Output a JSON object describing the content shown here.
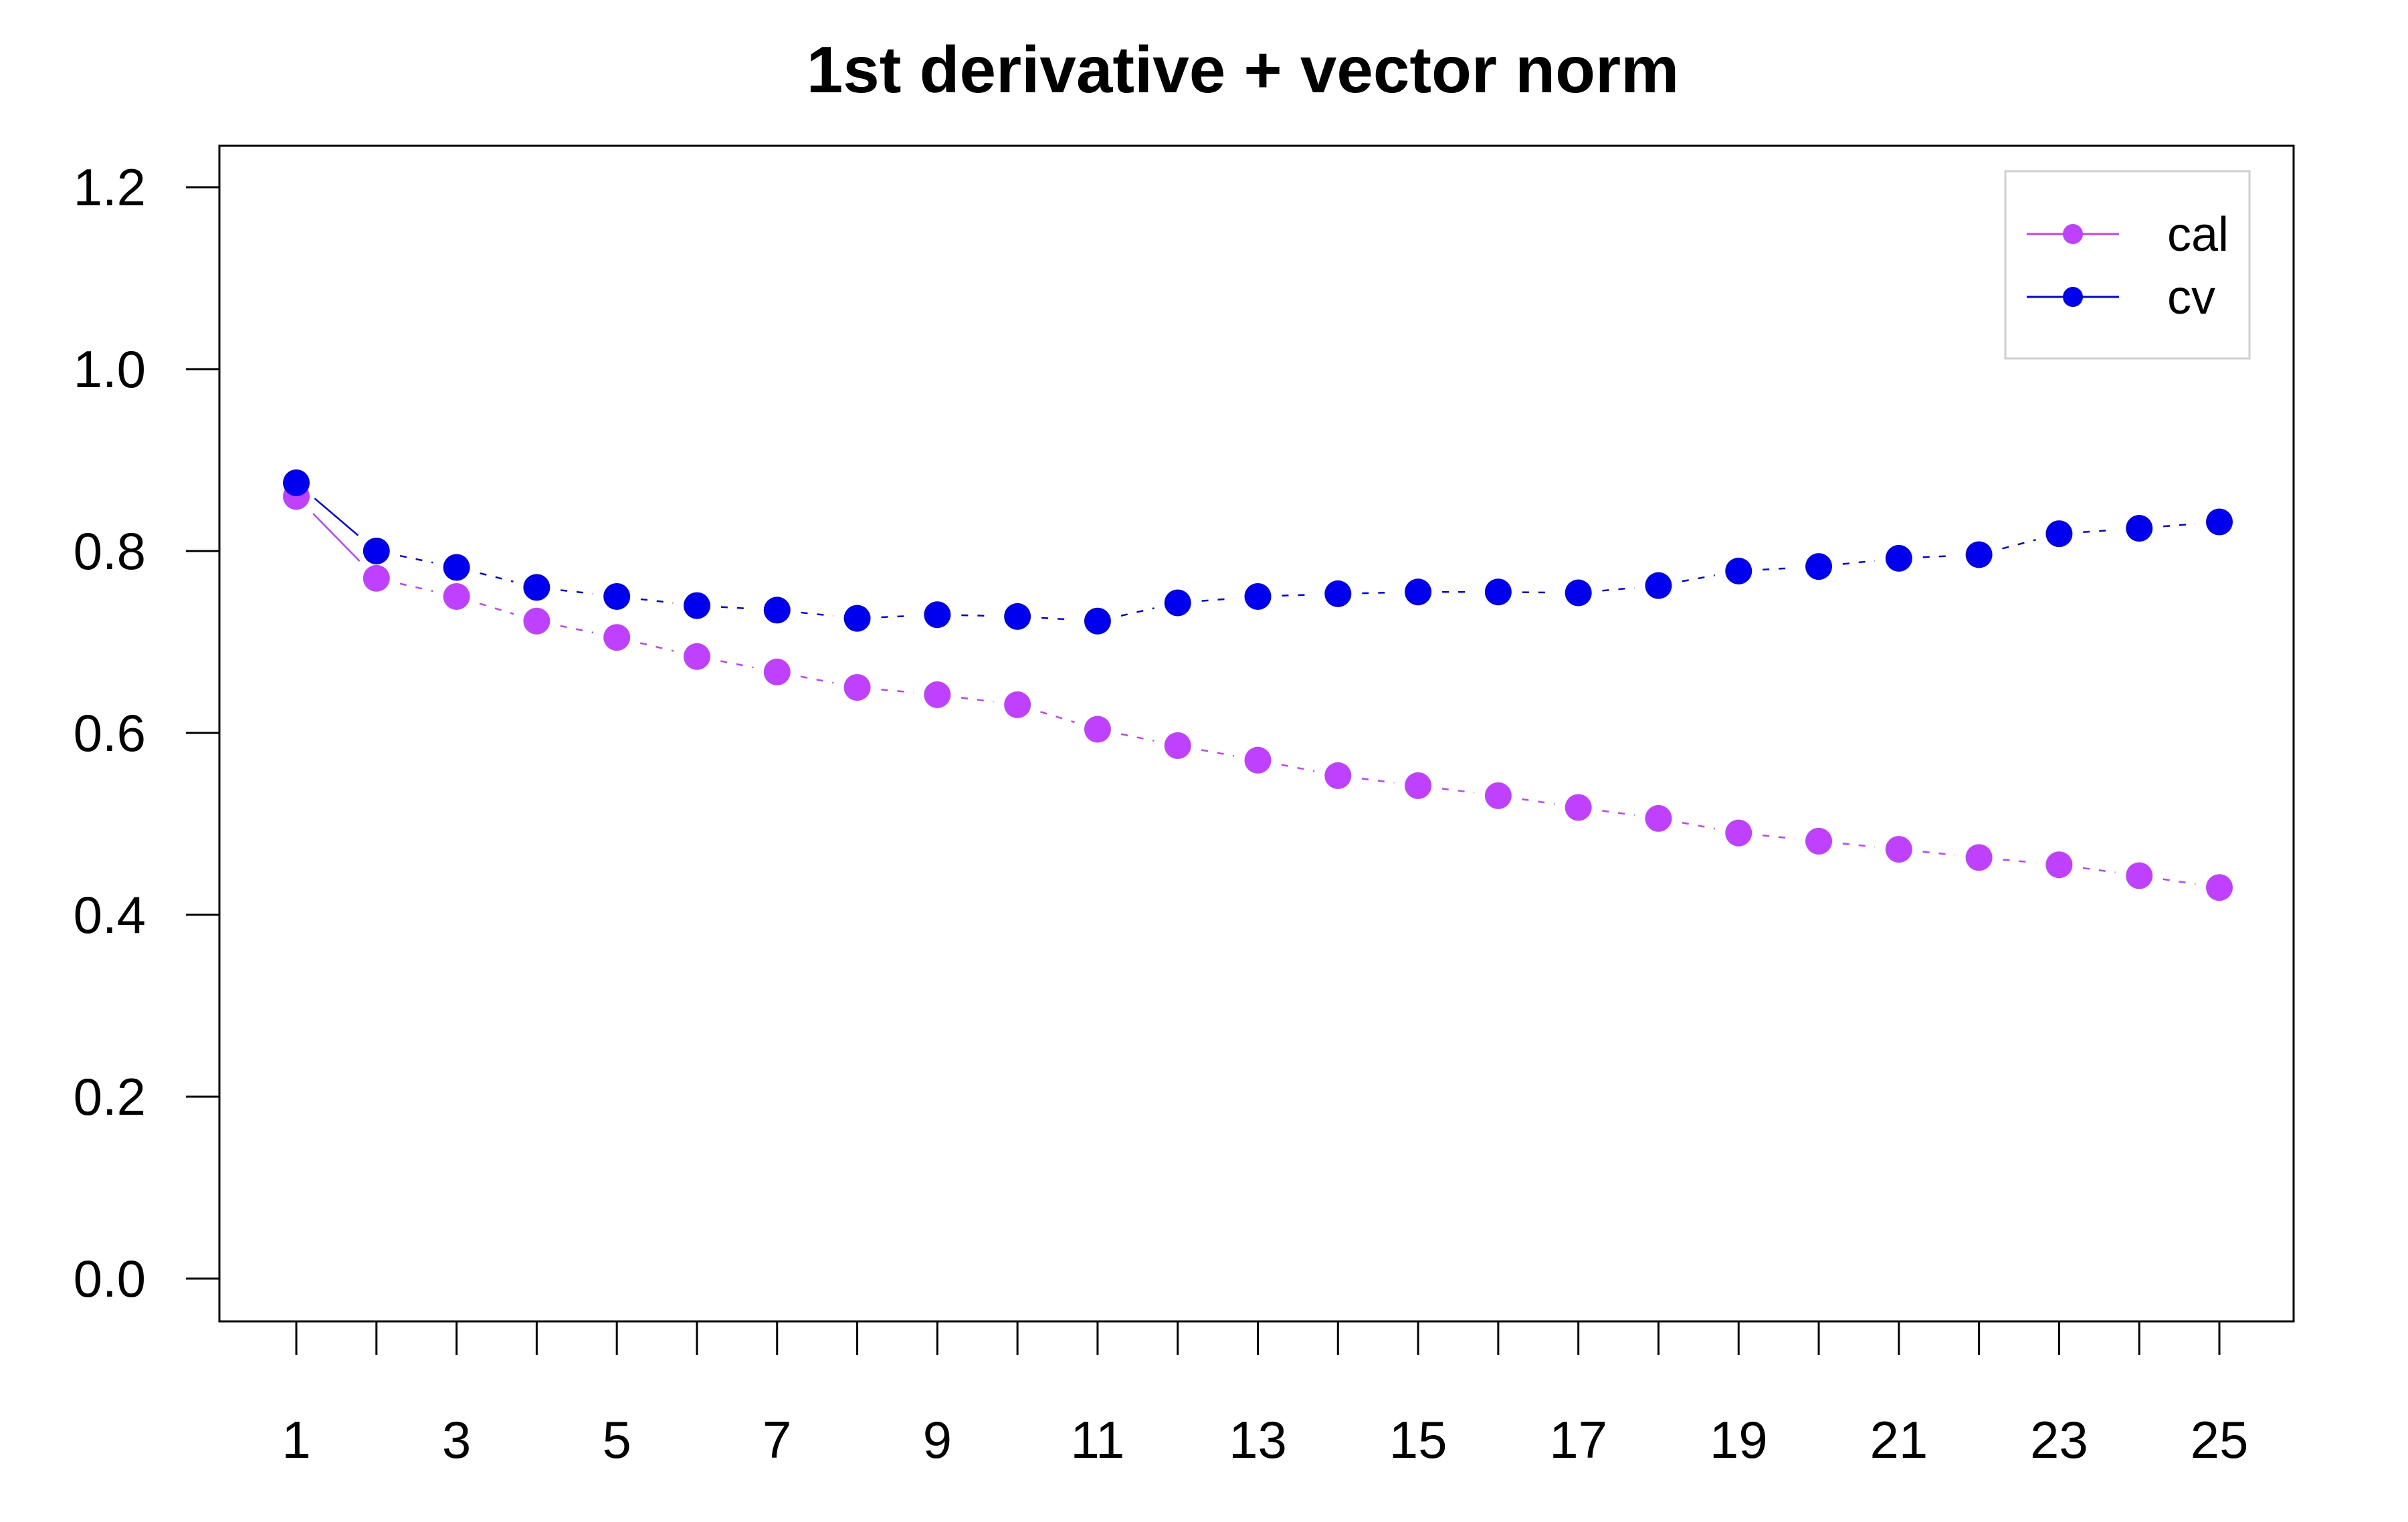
{
  "chart_data": {
    "type": "line",
    "title": "1st derivative + vector norm",
    "xlabel": "",
    "ylabel": "",
    "x": [
      1,
      2,
      3,
      4,
      5,
      6,
      7,
      8,
      9,
      10,
      11,
      12,
      13,
      14,
      15,
      16,
      17,
      18,
      19,
      20,
      21,
      22,
      23,
      24,
      25
    ],
    "x_tick_labels": [
      "1",
      "3",
      "5",
      "7",
      "9",
      "11",
      "13",
      "15",
      "17",
      "19",
      "21",
      "23",
      "25"
    ],
    "y_tick_labels": [
      "0.0",
      "0.2",
      "0.4",
      "0.6",
      "0.8",
      "1.0",
      "1.2"
    ],
    "ylim": [
      0,
      1.2
    ],
    "xlim": [
      1,
      25
    ],
    "grid": false,
    "legend_position": "top-right",
    "series": [
      {
        "name": "cal",
        "color": "#BF40FF",
        "values": [
          0.86,
          0.77,
          0.75,
          0.723,
          0.705,
          0.684,
          0.667,
          0.65,
          0.642,
          0.631,
          0.604,
          0.586,
          0.57,
          0.553,
          0.542,
          0.531,
          0.518,
          0.506,
          0.49,
          0.481,
          0.472,
          0.463,
          0.455,
          0.443,
          0.43
        ]
      },
      {
        "name": "cv",
        "color": "#0000EE",
        "values": [
          0.875,
          0.8,
          0.782,
          0.76,
          0.75,
          0.74,
          0.735,
          0.726,
          0.73,
          0.728,
          0.723,
          0.743,
          0.75,
          0.753,
          0.755,
          0.755,
          0.754,
          0.762,
          0.778,
          0.783,
          0.792,
          0.796,
          0.819,
          0.825,
          0.832
        ]
      }
    ]
  }
}
